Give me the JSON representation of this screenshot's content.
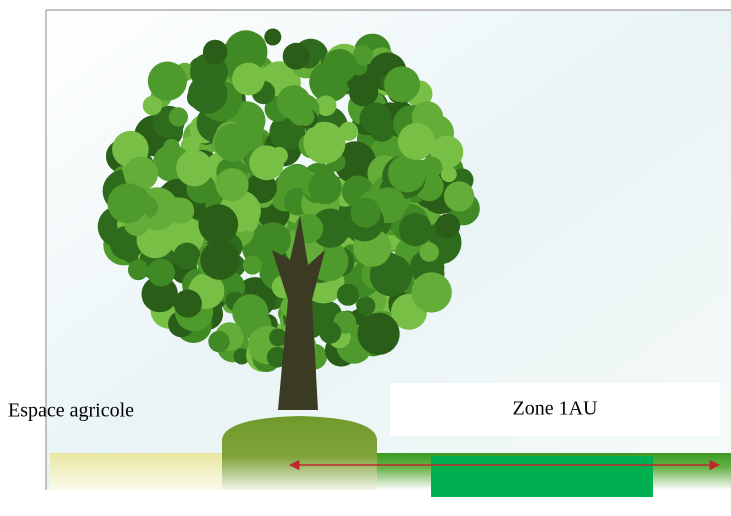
{
  "labels": {
    "left": "Espace agricole",
    "zone": "Zone 1AU"
  }
}
